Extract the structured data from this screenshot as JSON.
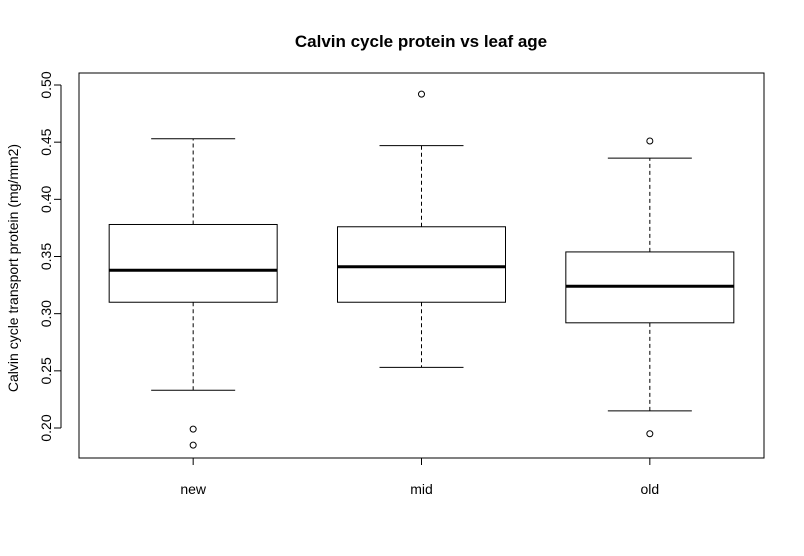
{
  "chart_data": {
    "type": "boxplot",
    "title": "Calvin cycle protein vs leaf age",
    "xlabel": "",
    "ylabel": "Calvin cycle transport protein (mg/mm2)",
    "ylim": [
      0.17,
      0.502
    ],
    "yticks": [
      "0.20",
      "0.25",
      "0.30",
      "0.35",
      "0.40",
      "0.45",
      "0.50"
    ],
    "categories": [
      "new",
      "mid",
      "old"
    ],
    "boxes": [
      {
        "whisker_low": 0.233,
        "q1": 0.31,
        "median": 0.338,
        "q3": 0.378,
        "whisker_high": 0.453,
        "outliers": [
          0.199,
          0.185
        ]
      },
      {
        "whisker_low": 0.253,
        "q1": 0.31,
        "median": 0.341,
        "q3": 0.376,
        "whisker_high": 0.447,
        "outliers": [
          0.492
        ]
      },
      {
        "whisker_low": 0.215,
        "q1": 0.292,
        "median": 0.324,
        "q3": 0.354,
        "whisker_high": 0.436,
        "outliers": [
          0.451,
          0.195
        ]
      }
    ],
    "grid": false,
    "legend": "none"
  }
}
